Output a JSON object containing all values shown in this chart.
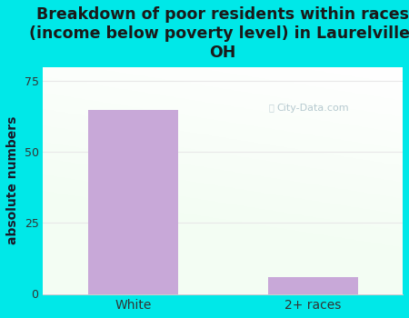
{
  "categories": [
    "White",
    "2+ races"
  ],
  "values": [
    65,
    6
  ],
  "bar_color": "#c8a8d8",
  "title": "Breakdown of poor residents within races\n(income below poverty level) in Laurelville,\nOH",
  "ylabel": "absolute numbers",
  "ylim": [
    0,
    80
  ],
  "yticks": [
    0,
    25,
    50,
    75
  ],
  "background_color": "#00e8e8",
  "title_color": "#1a1a1a",
  "axis_label_color": "#1a1a2a",
  "tick_label_color": "#333333",
  "grid_color": "#e0e8e0",
  "watermark_text": "City-Data.com",
  "title_fontsize": 12.5,
  "ylabel_fontsize": 10,
  "bar_width": 0.5
}
